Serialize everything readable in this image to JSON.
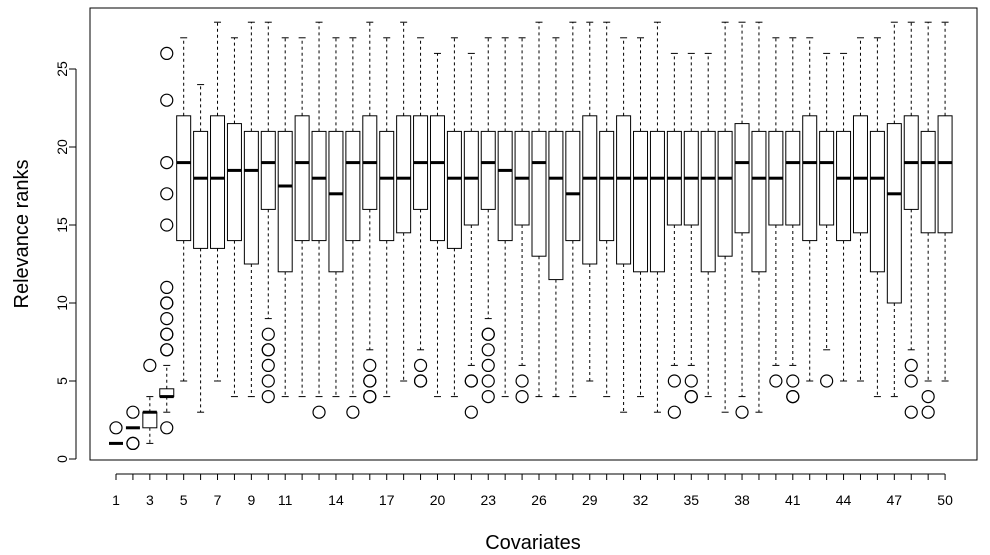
{
  "chart_data": {
    "type": "boxplot",
    "title": "",
    "xlabel": "Covariates",
    "ylabel": "Relevance ranks",
    "ylim": [
      0,
      28
    ],
    "yticks": [
      0,
      5,
      10,
      15,
      20,
      25
    ],
    "grid": false,
    "legend": "none",
    "x_tick_labels": [
      "1",
      "3",
      "5",
      "7",
      "9",
      "11",
      "14",
      "17",
      "20",
      "23",
      "26",
      "29",
      "32",
      "35",
      "38",
      "41",
      "44",
      "47",
      "50"
    ],
    "categories": [
      "1",
      "2",
      "3",
      "4",
      "5",
      "6",
      "7",
      "8",
      "9",
      "10",
      "11",
      "12",
      "13",
      "14",
      "15",
      "16",
      "17",
      "18",
      "19",
      "20",
      "21",
      "22",
      "23",
      "24",
      "25",
      "26",
      "27",
      "28",
      "29",
      "30",
      "31",
      "32",
      "33",
      "34",
      "35",
      "36",
      "37",
      "38",
      "39",
      "40",
      "41",
      "42",
      "43",
      "44",
      "45",
      "46",
      "47",
      "48",
      "49",
      "50"
    ],
    "boxes": [
      {
        "wlo": 1,
        "q1": 1,
        "med": 1,
        "q3": 1,
        "whi": 1,
        "out": [
          2
        ]
      },
      {
        "wlo": 2,
        "q1": 2,
        "med": 2,
        "q3": 2,
        "whi": 2,
        "out": [
          1,
          1,
          3
        ]
      },
      {
        "wlo": 1,
        "q1": 2,
        "med": 3,
        "q3": 3,
        "whi": 4,
        "out": [
          6
        ]
      },
      {
        "wlo": 3,
        "q1": 4,
        "med": 4,
        "q3": 4.5,
        "whi": 6,
        "out": [
          2,
          7,
          7,
          8,
          8,
          9,
          10,
          10,
          11,
          15,
          17,
          19,
          23,
          26
        ]
      },
      {
        "wlo": 5,
        "q1": 14,
        "med": 19,
        "q3": 22,
        "whi": 27,
        "out": []
      },
      {
        "wlo": 3,
        "q1": 13.5,
        "med": 18,
        "q3": 21,
        "whi": 24,
        "out": []
      },
      {
        "wlo": 5,
        "q1": 13.5,
        "med": 18,
        "q3": 22,
        "whi": 28,
        "out": []
      },
      {
        "wlo": 4,
        "q1": 14,
        "med": 18.5,
        "q3": 21.5,
        "whi": 27,
        "out": []
      },
      {
        "wlo": 4,
        "q1": 12.5,
        "med": 18.5,
        "q3": 21,
        "whi": 28,
        "out": []
      },
      {
        "wlo": 9,
        "q1": 16,
        "med": 19,
        "q3": 21,
        "whi": 28,
        "out": [
          4,
          5,
          6,
          7,
          7,
          8
        ]
      },
      {
        "wlo": 4,
        "q1": 12,
        "med": 17.5,
        "q3": 21,
        "whi": 27,
        "out": []
      },
      {
        "wlo": 4,
        "q1": 14,
        "med": 19,
        "q3": 22,
        "whi": 27,
        "out": []
      },
      {
        "wlo": 4,
        "q1": 14,
        "med": 18,
        "q3": 21,
        "whi": 28,
        "out": [
          3
        ]
      },
      {
        "wlo": 4,
        "q1": 12,
        "med": 17,
        "q3": 21,
        "whi": 27,
        "out": []
      },
      {
        "wlo": 4,
        "q1": 14,
        "med": 19,
        "q3": 21,
        "whi": 27,
        "out": [
          3
        ]
      },
      {
        "wlo": 7,
        "q1": 16,
        "med": 19,
        "q3": 22,
        "whi": 28,
        "out": [
          4,
          4,
          5,
          5,
          6
        ]
      },
      {
        "wlo": 4,
        "q1": 14,
        "med": 18,
        "q3": 21,
        "whi": 27,
        "out": []
      },
      {
        "wlo": 5,
        "q1": 14.5,
        "med": 18,
        "q3": 22,
        "whi": 28,
        "out": []
      },
      {
        "wlo": 7,
        "q1": 16,
        "med": 19,
        "q3": 22,
        "whi": 27,
        "out": [
          5,
          5,
          6
        ]
      },
      {
        "wlo": 4,
        "q1": 14,
        "med": 19,
        "q3": 22,
        "whi": 26,
        "out": []
      },
      {
        "wlo": 4,
        "q1": 13.5,
        "med": 18,
        "q3": 21,
        "whi": 27,
        "out": []
      },
      {
        "wlo": 6,
        "q1": 15,
        "med": 18,
        "q3": 21,
        "whi": 26,
        "out": [
          3,
          5,
          5
        ]
      },
      {
        "wlo": 9,
        "q1": 16,
        "med": 19,
        "q3": 21,
        "whi": 27,
        "out": [
          4,
          5,
          6,
          7,
          8,
          8
        ]
      },
      {
        "wlo": 4,
        "q1": 14,
        "med": 18.5,
        "q3": 21,
        "whi": 27,
        "out": []
      },
      {
        "wlo": 6,
        "q1": 15,
        "med": 18,
        "q3": 21,
        "whi": 27,
        "out": [
          4,
          5
        ]
      },
      {
        "wlo": 4,
        "q1": 13,
        "med": 19,
        "q3": 21,
        "whi": 28,
        "out": []
      },
      {
        "wlo": 4,
        "q1": 11.5,
        "med": 18,
        "q3": 21,
        "whi": 27,
        "out": []
      },
      {
        "wlo": 4,
        "q1": 14,
        "med": 17,
        "q3": 21,
        "whi": 28,
        "out": []
      },
      {
        "wlo": 5,
        "q1": 12.5,
        "med": 18,
        "q3": 22,
        "whi": 28,
        "out": []
      },
      {
        "wlo": 4,
        "q1": 14,
        "med": 18,
        "q3": 21,
        "whi": 28,
        "out": []
      },
      {
        "wlo": 3,
        "q1": 12.5,
        "med": 18,
        "q3": 22,
        "whi": 27,
        "out": []
      },
      {
        "wlo": 4,
        "q1": 12,
        "med": 18,
        "q3": 21,
        "whi": 27,
        "out": []
      },
      {
        "wlo": 3,
        "q1": 12,
        "med": 18,
        "q3": 21,
        "whi": 28,
        "out": []
      },
      {
        "wlo": 6,
        "q1": 15,
        "med": 18,
        "q3": 21,
        "whi": 26,
        "out": [
          3,
          5
        ]
      },
      {
        "wlo": 6,
        "q1": 15,
        "med": 18,
        "q3": 21,
        "whi": 26,
        "out": [
          4,
          4,
          5
        ]
      },
      {
        "wlo": 4,
        "q1": 12,
        "med": 18,
        "q3": 21,
        "whi": 26,
        "out": []
      },
      {
        "wlo": 3,
        "q1": 13,
        "med": 18,
        "q3": 21,
        "whi": 28,
        "out": []
      },
      {
        "wlo": 4,
        "q1": 14.5,
        "med": 19,
        "q3": 21.5,
        "whi": 28,
        "out": [
          3
        ]
      },
      {
        "wlo": 3,
        "q1": 12,
        "med": 18,
        "q3": 21,
        "whi": 28,
        "out": []
      },
      {
        "wlo": 6,
        "q1": 15,
        "med": 18,
        "q3": 21,
        "whi": 27,
        "out": [
          5
        ]
      },
      {
        "wlo": 6,
        "q1": 15,
        "med": 19,
        "q3": 21,
        "whi": 27,
        "out": [
          4,
          4,
          5
        ]
      },
      {
        "wlo": 5,
        "q1": 14,
        "med": 19,
        "q3": 22,
        "whi": 27,
        "out": []
      },
      {
        "wlo": 7,
        "q1": 15,
        "med": 19,
        "q3": 21,
        "whi": 26,
        "out": [
          5
        ]
      },
      {
        "wlo": 5,
        "q1": 14,
        "med": 18,
        "q3": 21,
        "whi": 26,
        "out": []
      },
      {
        "wlo": 5,
        "q1": 14.5,
        "med": 18,
        "q3": 22,
        "whi": 27,
        "out": []
      },
      {
        "wlo": 4,
        "q1": 12,
        "med": 18,
        "q3": 21,
        "whi": 27,
        "out": []
      },
      {
        "wlo": 4,
        "q1": 10,
        "med": 17,
        "q3": 21.5,
        "whi": 28,
        "out": []
      },
      {
        "wlo": 7,
        "q1": 16,
        "med": 19,
        "q3": 22,
        "whi": 28,
        "out": [
          3,
          5,
          6
        ]
      },
      {
        "wlo": 5,
        "q1": 14.5,
        "med": 19,
        "q3": 21,
        "whi": 28,
        "out": [
          3,
          4
        ]
      },
      {
        "wlo": 5,
        "q1": 14.5,
        "med": 19,
        "q3": 22,
        "whi": 28,
        "out": []
      }
    ]
  }
}
